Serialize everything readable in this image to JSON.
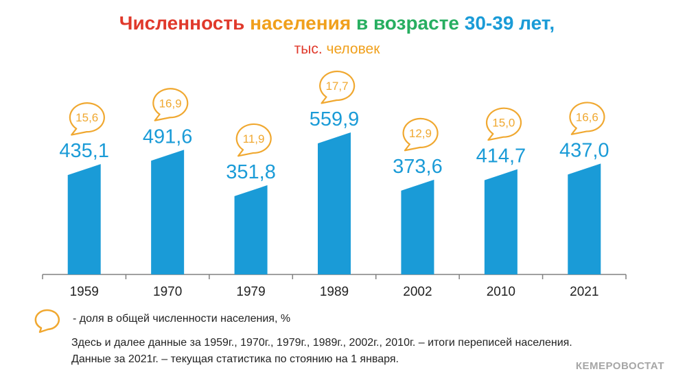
{
  "header": {
    "title_part1": "Численность",
    "title_part2": "населения",
    "title_part3": "в возрасте",
    "title_part4": "30-39 лет,",
    "subtitle_part1": "тыс.",
    "subtitle_part2": "человек"
  },
  "legend": {
    "share_label": "- доля в общей численности населения, %"
  },
  "notes": {
    "line1": "Здесь и далее данные за 1959г., 1970г., 1979г., 1989г., 2002г., 2010г. – итоги переписей населения.",
    "line2": "Данные за 2021г. – текущая  статистика по стоянию на 1 января."
  },
  "brand": "КЕМЕРОВОСТАТ",
  "colors": {
    "bar": "#1a9bd7",
    "value_text": "#1a9bd7",
    "bubble": "#f0a830",
    "axis": "#808080"
  },
  "chart_data": {
    "type": "bar",
    "title": "Численность населения в возрасте 30-39 лет, тыс. человек",
    "categories": [
      "1959",
      "1970",
      "1979",
      "1989",
      "2002",
      "2010",
      "2021"
    ],
    "values": [
      435.1,
      491.6,
      351.8,
      559.9,
      373.6,
      414.7,
      437.0
    ],
    "value_labels": [
      "435,1",
      "491,6",
      "351,8",
      "559,9",
      "373,6",
      "414,7",
      "437,0"
    ],
    "share_values": [
      15.6,
      16.9,
      11.9,
      17.7,
      12.9,
      15.0,
      16.6
    ],
    "share_labels": [
      "15,6",
      "16,9",
      "11,9",
      "17,7",
      "12,9",
      "15,0",
      "16,6"
    ],
    "legend": [
      {
        "name": "- доля в общей численности населения, %",
        "marker": "speech-bubble"
      }
    ],
    "grid": false
  }
}
